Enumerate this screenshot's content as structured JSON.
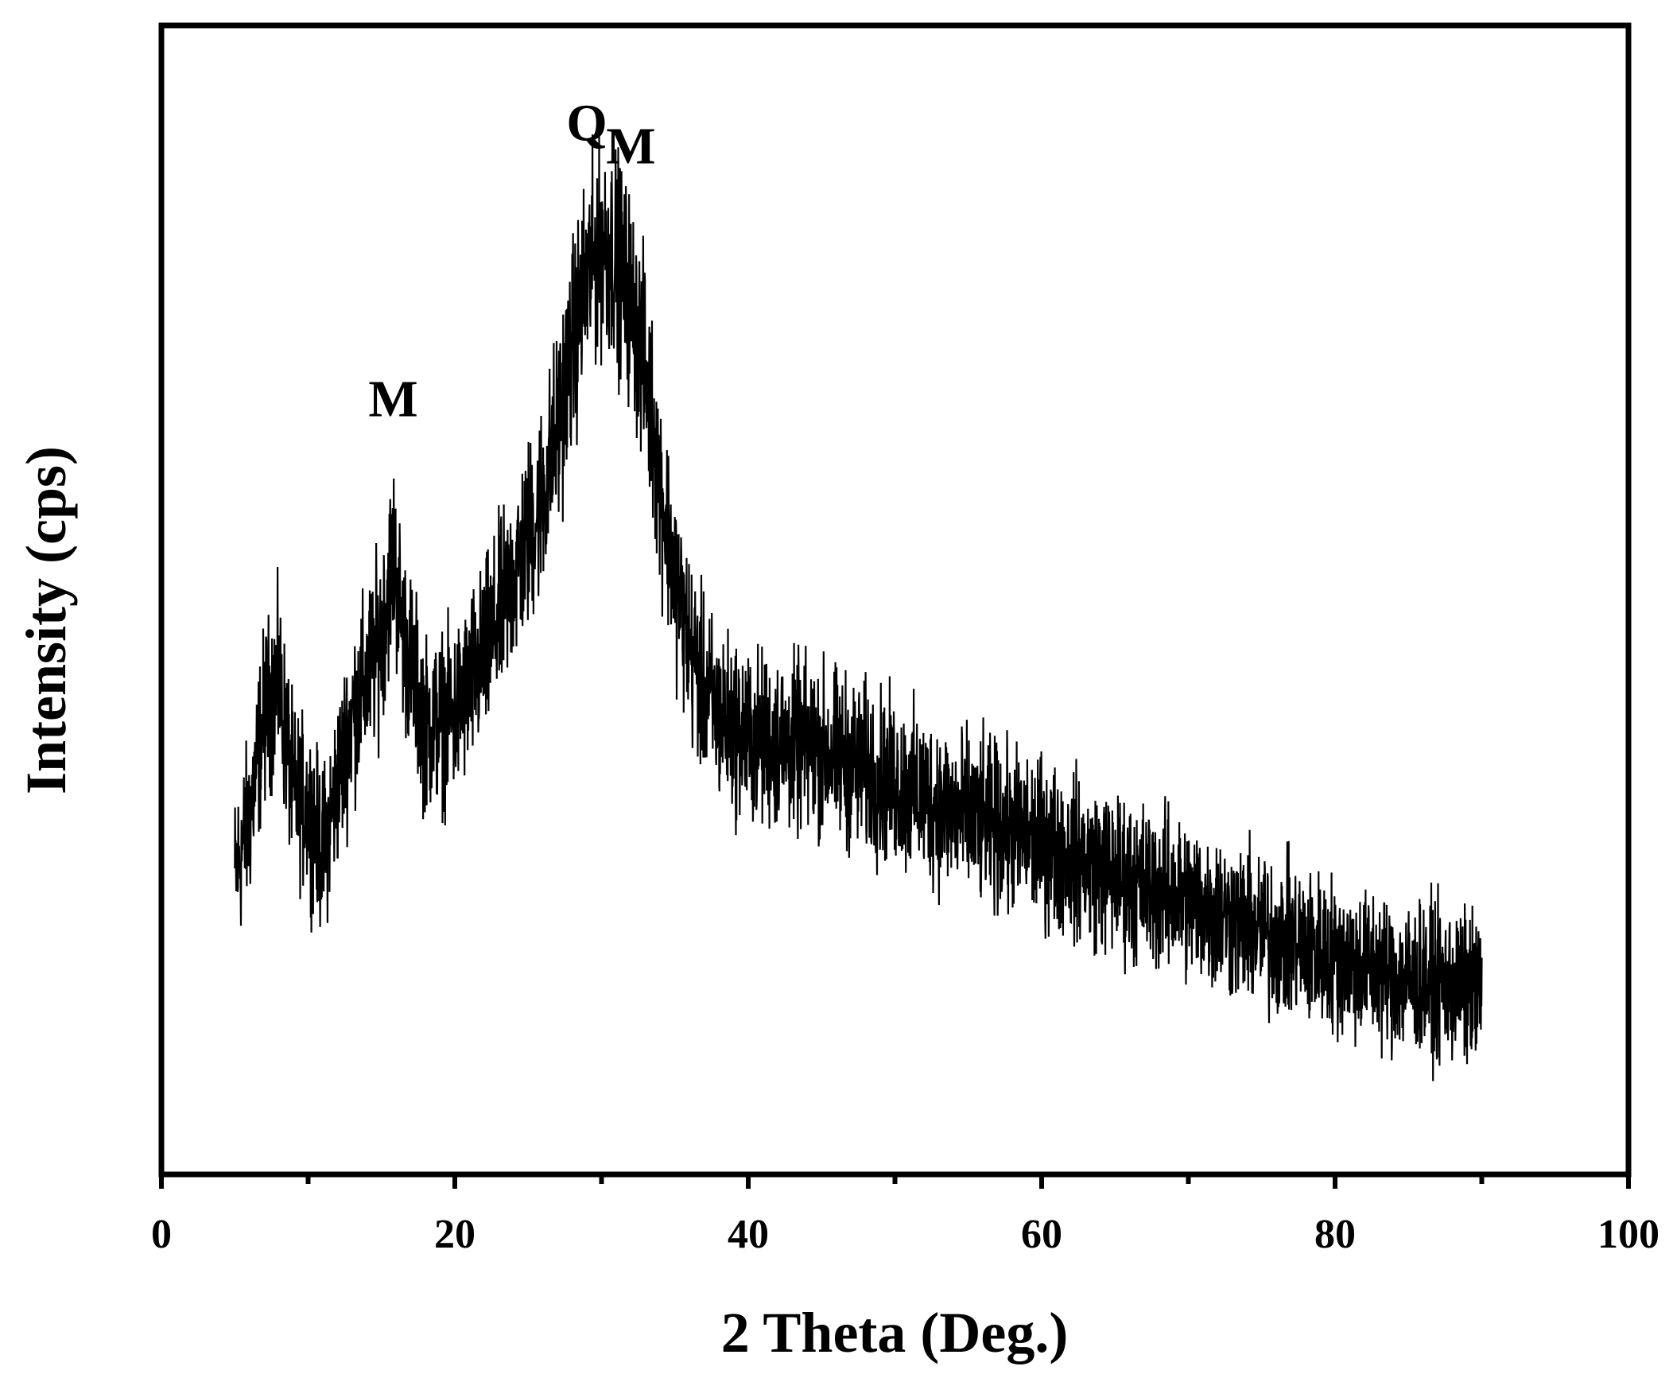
{
  "chart_data": {
    "type": "line",
    "title": "",
    "xlabel": "2 Theta (Deg.)",
    "ylabel": "Intensity (cps)",
    "xlim": [
      0,
      100
    ],
    "ylim": [
      0,
      100
    ],
    "y_tick_labels_shown": false,
    "x_ticks": [
      0,
      20,
      40,
      60,
      80,
      100
    ],
    "x_tick_labels": [
      "0",
      "20",
      "40",
      "60",
      "80",
      "100"
    ],
    "x_minor_ticks": [
      10,
      30,
      50,
      70,
      90
    ],
    "grid": false,
    "legend": "none",
    "line_color": "#000000",
    "x_range": [
      5,
      90
    ],
    "x_step": 0.02,
    "noise_amplitude": 9,
    "envelope": [
      [
        5,
        26
      ],
      [
        6,
        31
      ],
      [
        7,
        40
      ],
      [
        8,
        43
      ],
      [
        9,
        33
      ],
      [
        10,
        32
      ],
      [
        11,
        28
      ],
      [
        12,
        34
      ],
      [
        13,
        40
      ],
      [
        14,
        43
      ],
      [
        15,
        47
      ],
      [
        15.8,
        54
      ],
      [
        16.5,
        47
      ],
      [
        18,
        39
      ],
      [
        20,
        40
      ],
      [
        22,
        45
      ],
      [
        24,
        52
      ],
      [
        26,
        59
      ],
      [
        27,
        65
      ],
      [
        28,
        72
      ],
      [
        29,
        78
      ],
      [
        30,
        81
      ],
      [
        31,
        80
      ],
      [
        32,
        76
      ],
      [
        33,
        70
      ],
      [
        34,
        60
      ],
      [
        35,
        52
      ],
      [
        36,
        46
      ],
      [
        37,
        42
      ],
      [
        38,
        40
      ],
      [
        40,
        38
      ],
      [
        45,
        37
      ],
      [
        50,
        34
      ],
      [
        55,
        31
      ],
      [
        60,
        29
      ],
      [
        65,
        26
      ],
      [
        70,
        24
      ],
      [
        75,
        21
      ],
      [
        80,
        19
      ],
      [
        85,
        17
      ],
      [
        90,
        16
      ]
    ],
    "annotations": [
      {
        "text": "M",
        "x": 15.8
      },
      {
        "text": "Q",
        "x": 29.0
      },
      {
        "text": "M",
        "x": 32.0
      }
    ]
  }
}
